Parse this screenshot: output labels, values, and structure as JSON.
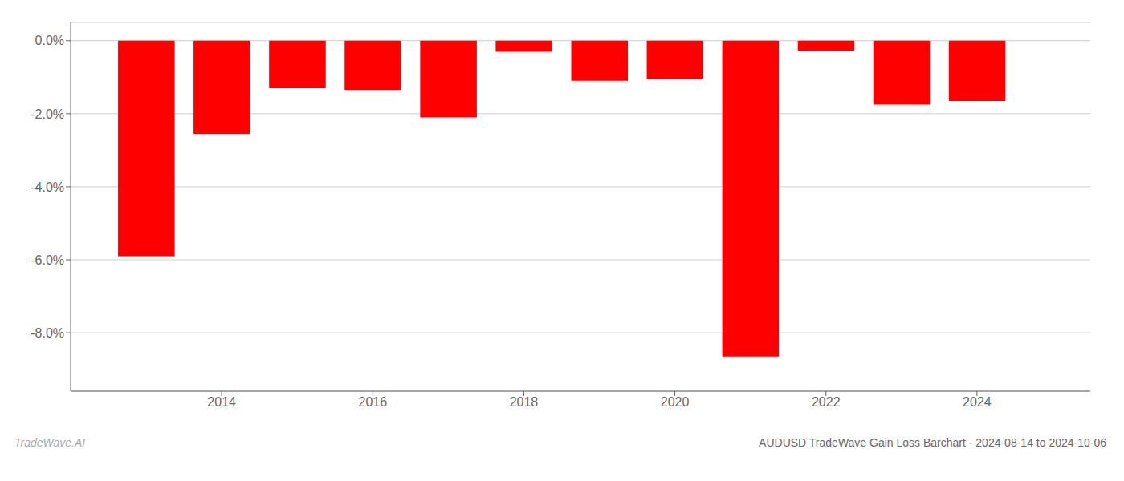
{
  "chart_data": {
    "type": "bar",
    "title": "AUDUSD TradeWave Gain Loss Barchart - 2024-08-14 to 2024-10-06",
    "annotations": [
      "TradeWave.AI"
    ],
    "x": [
      2013,
      2014,
      2015,
      2016,
      2017,
      2018,
      2019,
      2020,
      2021,
      2022,
      2023,
      2024
    ],
    "values": [
      -5.9,
      -2.55,
      -1.3,
      -1.35,
      -2.1,
      -0.3,
      -1.1,
      -1.05,
      -8.65,
      -0.28,
      -1.75,
      -1.65
    ],
    "color": "#ff0000",
    "xlim": [
      2012.0,
      2025.5
    ],
    "xticks": [
      2014,
      2016,
      2018,
      2020,
      2022,
      2024
    ],
    "ylim": [
      -9.6,
      0.5
    ],
    "yticks": [
      {
        "value": -8,
        "label": "-8.0%"
      },
      {
        "value": -6,
        "label": "-6.0%"
      },
      {
        "value": -4,
        "label": "-4.0%"
      },
      {
        "value": -2,
        "label": "-2.0%"
      },
      {
        "value": 0,
        "label": "0.0%"
      }
    ],
    "grid": true
  }
}
